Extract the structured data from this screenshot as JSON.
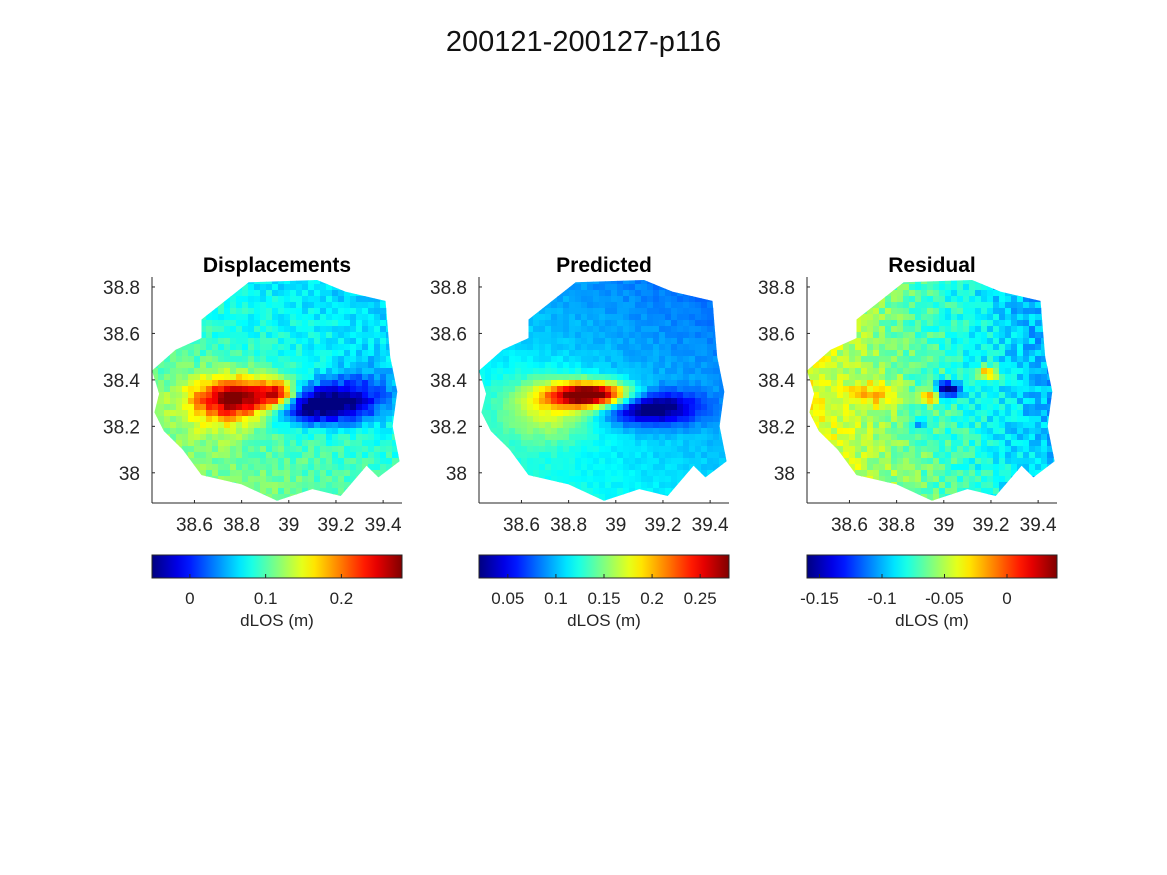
{
  "figure": {
    "title": "200121-200127-p116"
  },
  "colormap": "jet",
  "chart_data": [
    {
      "type": "heatmap",
      "title": "Displacements",
      "x_ticks": [
        "38.6",
        "38.8",
        "39",
        "39.2",
        "39.4"
      ],
      "y_ticks": [
        "38.8",
        "38.6",
        "38.4",
        "38.2",
        "38"
      ],
      "xlim": [
        38.42,
        39.48
      ],
      "ylim": [
        37.87,
        38.83
      ],
      "colorbar": {
        "label": "dLOS (m)",
        "range": [
          -0.05,
          0.28
        ],
        "ticks": [
          "0",
          "0.1",
          "0.2"
        ],
        "tick_values": [
          0,
          0.1,
          0.2
        ]
      },
      "features": [
        {
          "kind": "positive_lobe",
          "x": 38.82,
          "y": 38.32,
          "value": 0.25
        },
        {
          "kind": "positive_lobe",
          "x": 38.95,
          "y": 38.34,
          "value": 0.27
        },
        {
          "kind": "negative_lobe",
          "x": 39.1,
          "y": 38.3,
          "value": -0.04
        }
      ]
    },
    {
      "type": "heatmap",
      "title": "Predicted",
      "x_ticks": [
        "38.6",
        "38.8",
        "39",
        "39.2",
        "39.4"
      ],
      "y_ticks": [
        "38.8",
        "38.6",
        "38.4",
        "38.2",
        "38"
      ],
      "xlim": [
        38.42,
        39.48
      ],
      "ylim": [
        37.87,
        38.83
      ],
      "colorbar": {
        "label": "dLOS (m)",
        "range": [
          0.02,
          0.28
        ],
        "ticks": [
          "0.05",
          "0.1",
          "0.15",
          "0.2",
          "0.25"
        ],
        "tick_values": [
          0.05,
          0.1,
          0.15,
          0.2,
          0.25
        ]
      },
      "features": [
        {
          "kind": "positive_lobe",
          "x": 38.88,
          "y": 38.33,
          "value": 0.28
        },
        {
          "kind": "negative_lobe",
          "x": 39.12,
          "y": 38.28,
          "value": 0.02
        }
      ]
    },
    {
      "type": "heatmap",
      "title": "Residual",
      "x_ticks": [
        "38.6",
        "38.8",
        "39",
        "39.2",
        "39.4"
      ],
      "y_ticks": [
        "38.8",
        "38.6",
        "38.4",
        "38.2",
        "38"
      ],
      "xlim": [
        38.42,
        39.48
      ],
      "ylim": [
        37.87,
        38.83
      ],
      "colorbar": {
        "label": "dLOS (m)",
        "range": [
          -0.16,
          0.04
        ],
        "ticks": [
          "-0.15",
          "-0.1",
          "-0.05",
          "0"
        ],
        "tick_values": [
          -0.15,
          -0.1,
          -0.05,
          0
        ]
      },
      "features": [
        {
          "kind": "positive_patch",
          "x": 38.94,
          "y": 38.33,
          "value": 0.03
        },
        {
          "kind": "positive_patch",
          "x": 39.2,
          "y": 38.43,
          "value": 0.025
        },
        {
          "kind": "negative_patch",
          "x": 39.02,
          "y": 38.36,
          "value": -0.15
        }
      ]
    }
  ]
}
